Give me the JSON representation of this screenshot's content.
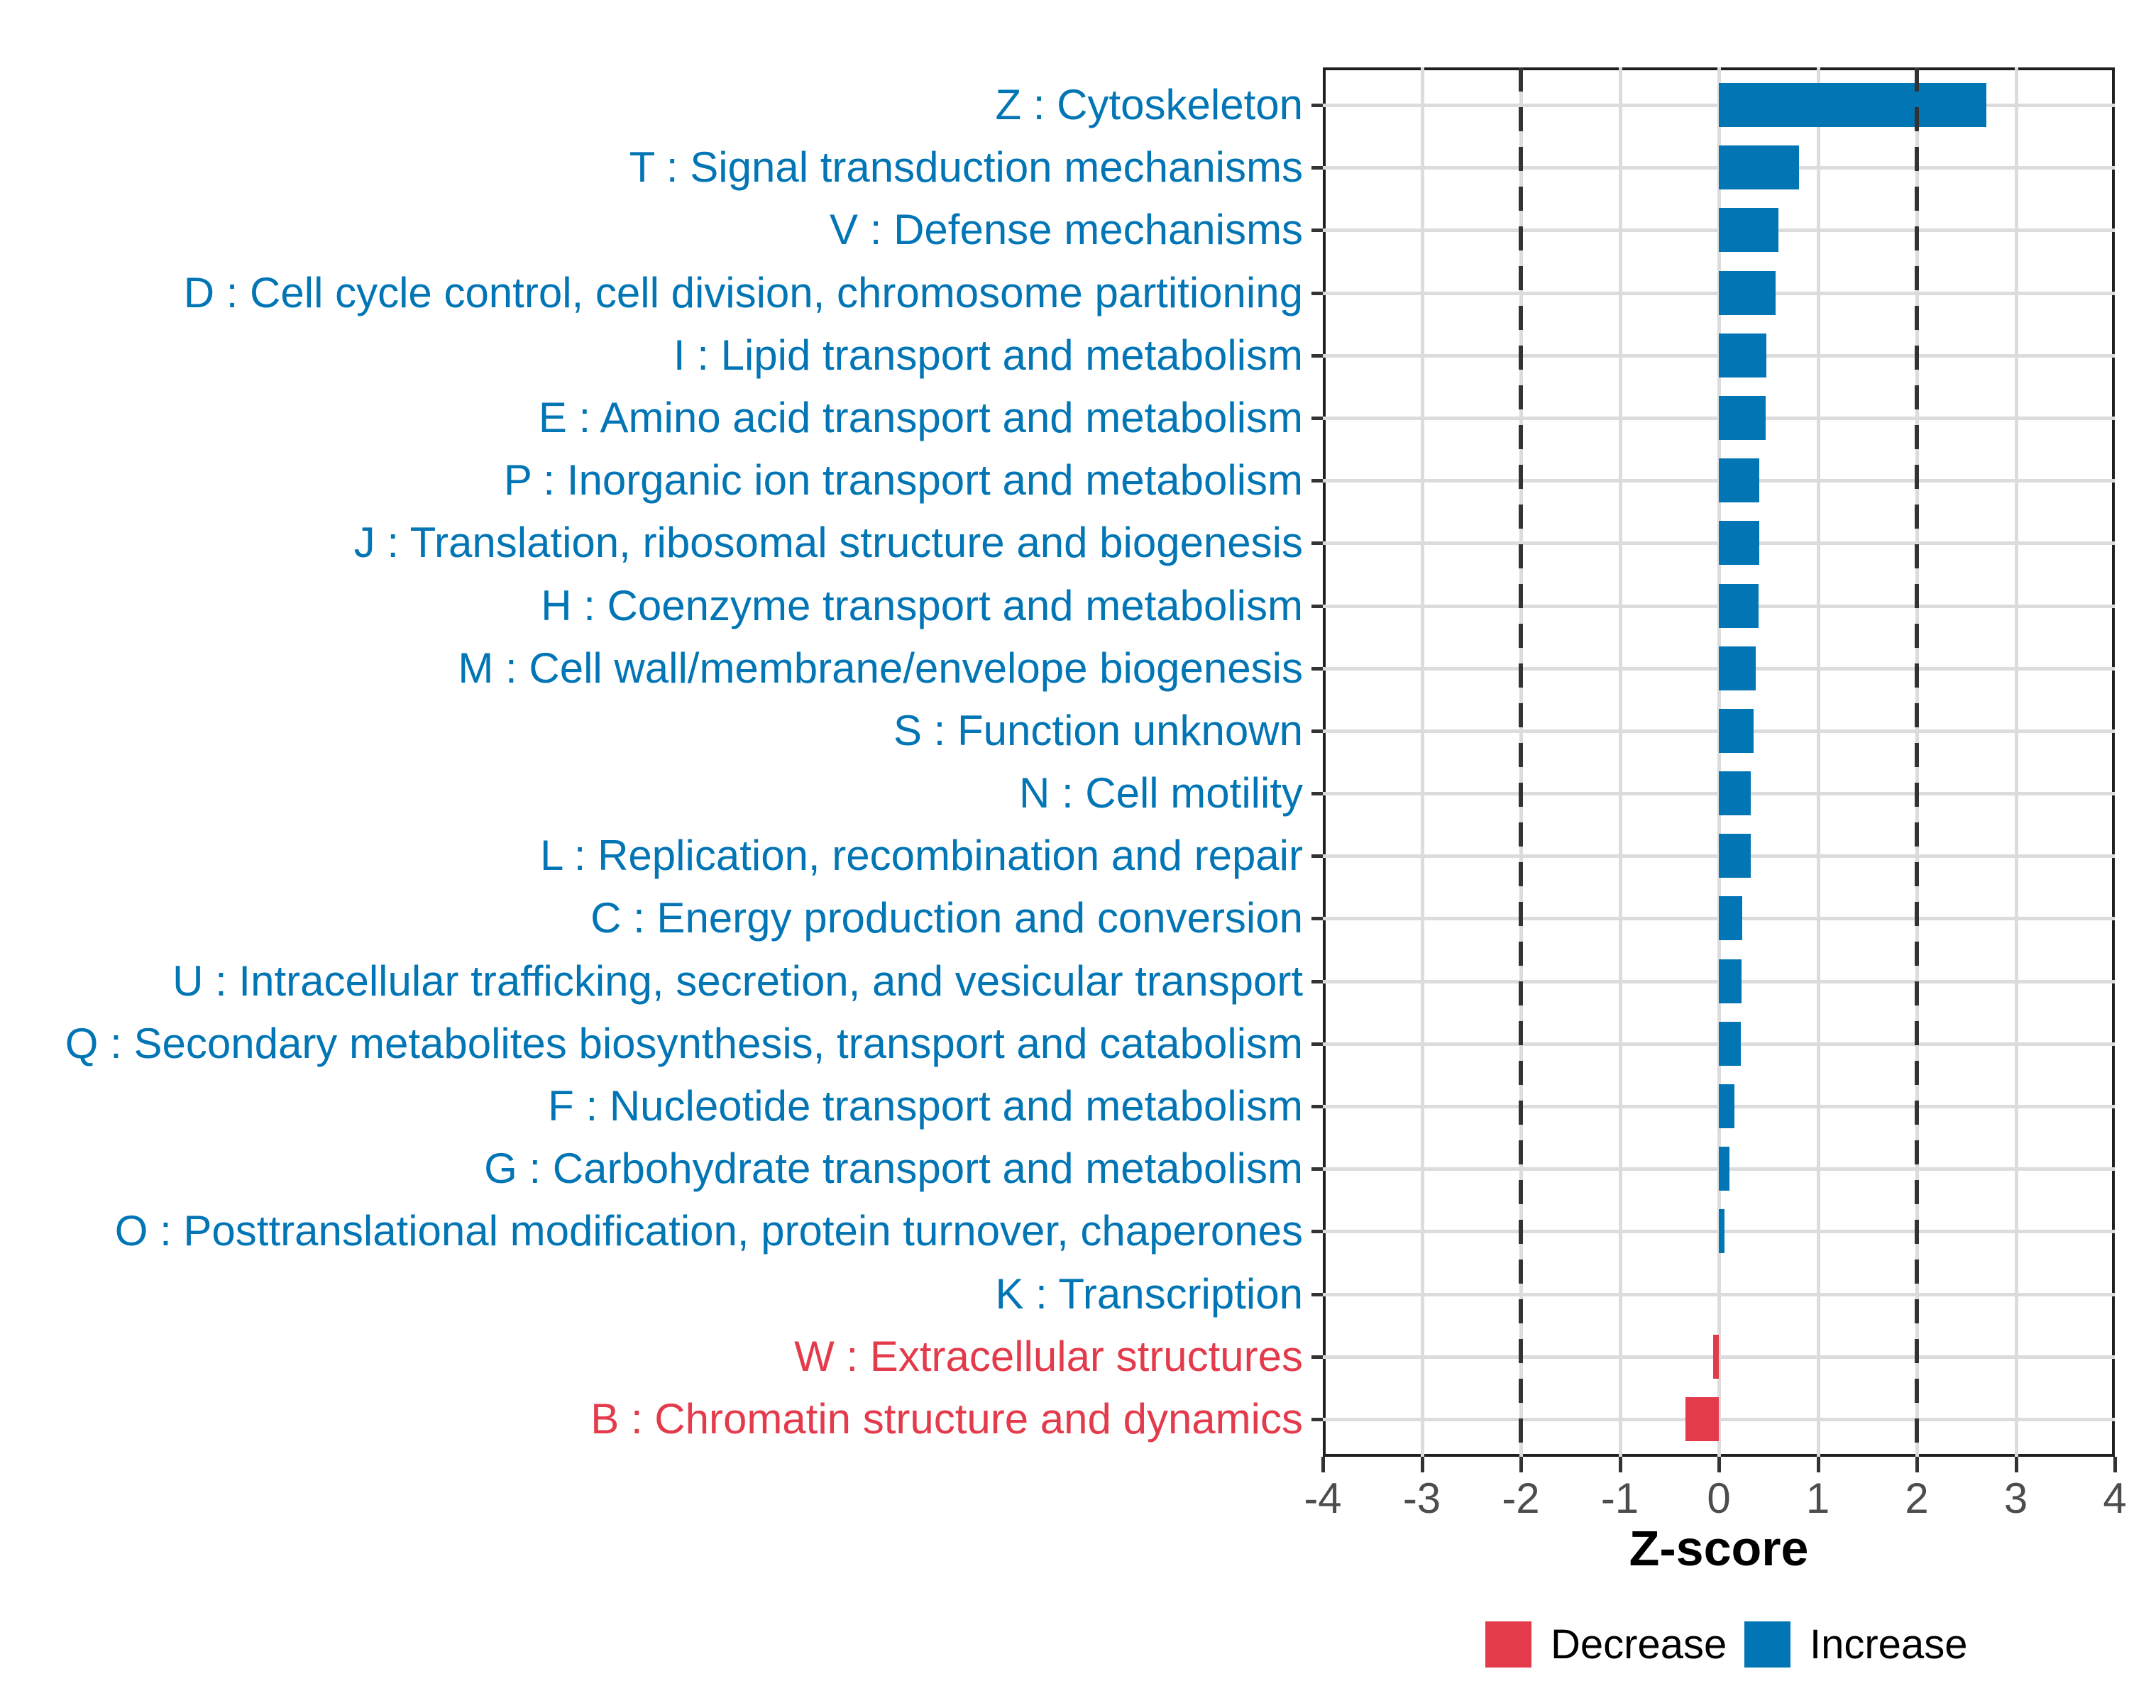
{
  "chart_data": {
    "type": "bar",
    "orientation": "horizontal",
    "title": "",
    "xlabel": "Z-score",
    "ylabel": "",
    "xlim": [
      -4,
      4
    ],
    "xticks": [
      -4,
      -3,
      -2,
      -1,
      0,
      1,
      2,
      3,
      4
    ],
    "reference_dashed_lines_x": [
      -2,
      2
    ],
    "grid": "major-only",
    "legend_position": "bottom-right",
    "categories": [
      {
        "label": "Z : Cytoskeleton",
        "value": 2.7,
        "direction": "Increase"
      },
      {
        "label": "T : Signal transduction mechanisms",
        "value": 0.81,
        "direction": "Increase"
      },
      {
        "label": "V : Defense mechanisms",
        "value": 0.6,
        "direction": "Increase"
      },
      {
        "label": "D : Cell cycle control, cell division, chromosome partitioning",
        "value": 0.57,
        "direction": "Increase"
      },
      {
        "label": "I : Lipid transport and metabolism",
        "value": 0.48,
        "direction": "Increase"
      },
      {
        "label": "E : Amino acid transport and metabolism",
        "value": 0.47,
        "direction": "Increase"
      },
      {
        "label": "P : Inorganic ion transport and metabolism",
        "value": 0.41,
        "direction": "Increase"
      },
      {
        "label": "J : Translation, ribosomal structure and biogenesis",
        "value": 0.41,
        "direction": "Increase"
      },
      {
        "label": "H : Coenzyme transport and metabolism",
        "value": 0.4,
        "direction": "Increase"
      },
      {
        "label": "M : Cell wall/membrane/envelope biogenesis",
        "value": 0.37,
        "direction": "Increase"
      },
      {
        "label": "S : Function unknown",
        "value": 0.35,
        "direction": "Increase"
      },
      {
        "label": "N : Cell motility",
        "value": 0.32,
        "direction": "Increase"
      },
      {
        "label": "L : Replication, recombination and repair",
        "value": 0.32,
        "direction": "Increase"
      },
      {
        "label": "C : Energy production and conversion",
        "value": 0.24,
        "direction": "Increase"
      },
      {
        "label": "U : Intracellular trafficking, secretion, and vesicular transport",
        "value": 0.23,
        "direction": "Increase"
      },
      {
        "label": "Q : Secondary metabolites biosynthesis, transport and catabolism",
        "value": 0.22,
        "direction": "Increase"
      },
      {
        "label": "F : Nucleotide transport and metabolism",
        "value": 0.16,
        "direction": "Increase"
      },
      {
        "label": "G : Carbohydrate transport and metabolism",
        "value": 0.11,
        "direction": "Increase"
      },
      {
        "label": "O : Posttranslational modification, protein turnover, chaperones",
        "value": 0.06,
        "direction": "Increase"
      },
      {
        "label": "K : Transcription",
        "value": 0.0,
        "direction": "Increase"
      },
      {
        "label": "W : Extracellular structures",
        "value": -0.06,
        "direction": "Decrease"
      },
      {
        "label": "B : Chromatin structure and dynamics",
        "value": -0.34,
        "direction": "Decrease"
      }
    ],
    "legend": [
      {
        "label": "Decrease",
        "color": "#E33B4B"
      },
      {
        "label": "Increase",
        "color": "#0275B5"
      }
    ]
  },
  "colors": {
    "increase": "#0275B5",
    "decrease": "#E33B4B",
    "grid": "#dcdcdc",
    "dashed_line": "#333333",
    "axis_tick_text": "#4d4d4d",
    "panel_border": "#1f1f1f",
    "axis_title_text": "#000000"
  }
}
